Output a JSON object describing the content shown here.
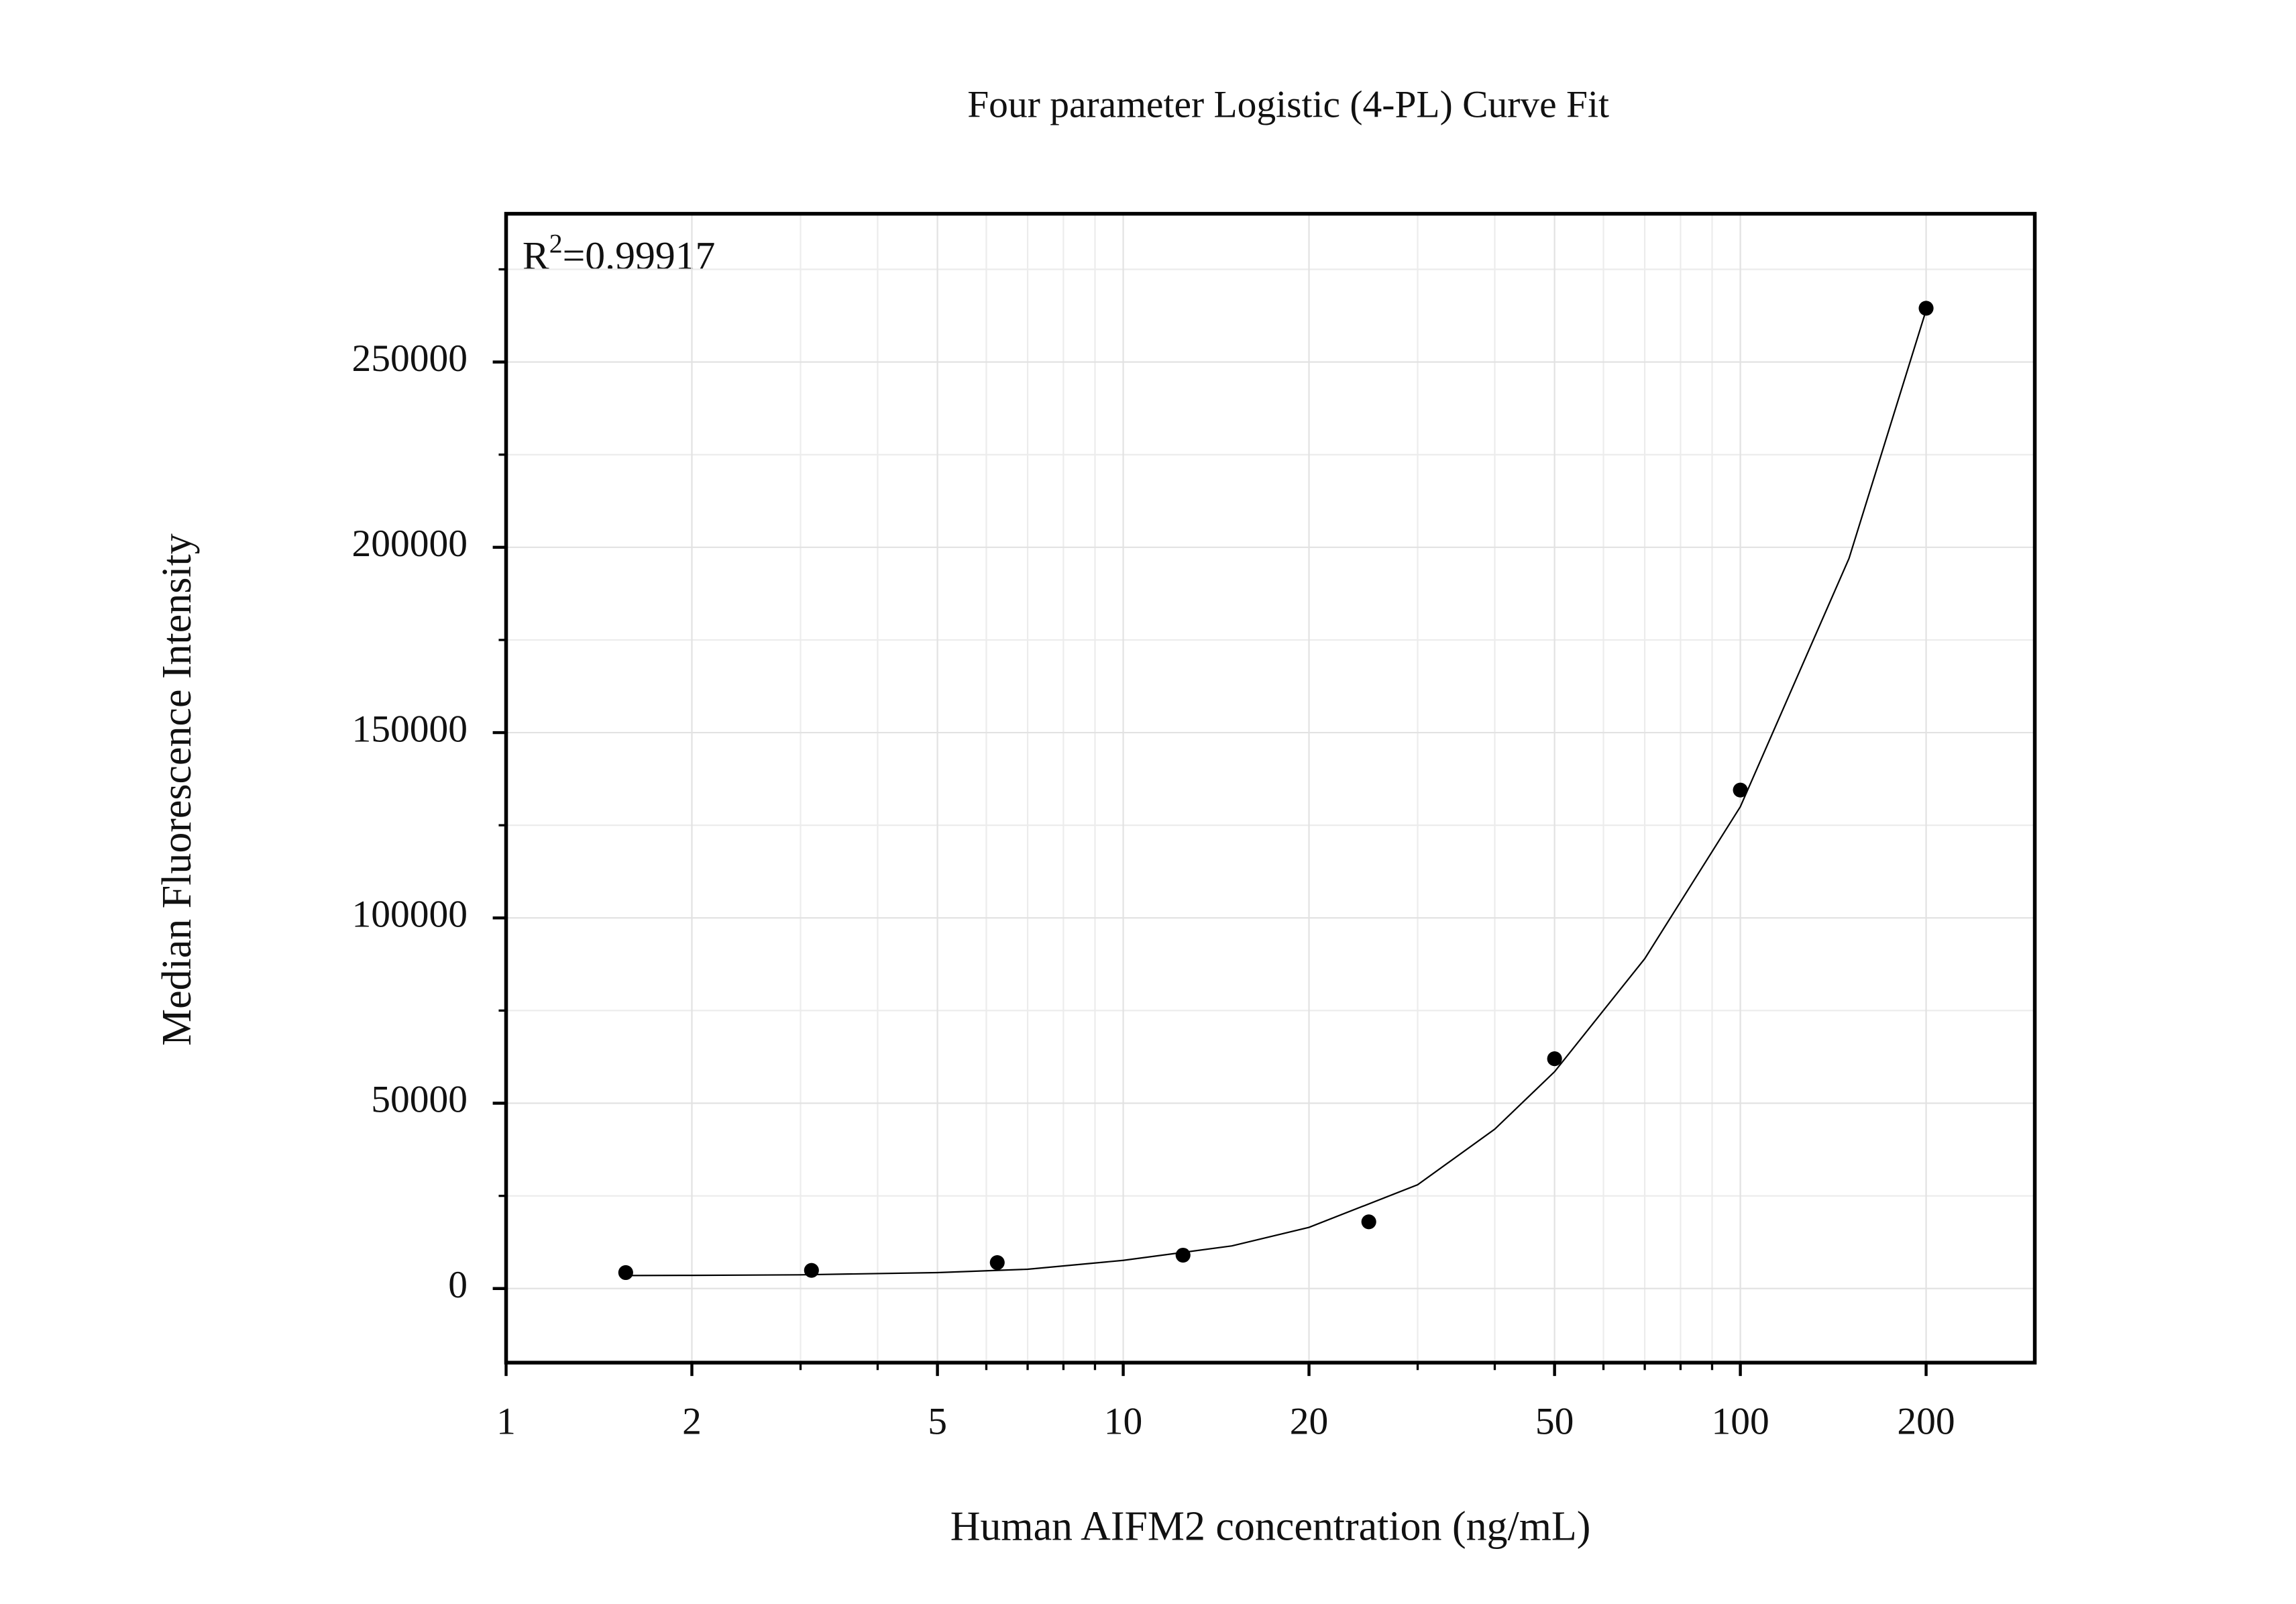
{
  "chart_data": {
    "type": "scatter",
    "title": "Four parameter Logistic (4-PL) Curve Fit",
    "x_label": "Human AIFM2 concentration (ng/mL)",
    "y_label": "Median Fluorescence Intensity",
    "annotation": {
      "base": "R",
      "superscript": "2",
      "rest": "=0.99917"
    },
    "x_scale": "log",
    "xlim": [
      1,
      300
    ],
    "ylim": [
      -20000,
      290000
    ],
    "xticks": [
      1,
      2,
      5,
      10,
      20,
      50,
      100,
      200
    ],
    "xminorticks": [
      3,
      4,
      6,
      7,
      8,
      9,
      30,
      40,
      60,
      70,
      80,
      90
    ],
    "yticks": [
      0,
      50000,
      100000,
      150000,
      200000,
      250000
    ],
    "yminorticks": [
      25000,
      75000,
      125000,
      175000,
      225000,
      275000
    ],
    "grid": true,
    "series": [
      {
        "kind": "points",
        "color": "#000000",
        "x": [
          1.5625,
          3.125,
          6.25,
          12.5,
          25,
          50,
          100,
          200
        ],
        "values": [
          4300,
          4900,
          7000,
          9000,
          18000,
          62000,
          134500,
          264500
        ]
      },
      {
        "kind": "curve",
        "color": "#000000",
        "x": [
          1.5625,
          2,
          3,
          5,
          7,
          10,
          15,
          20,
          30,
          40,
          50,
          70,
          100,
          150,
          200
        ],
        "values": [
          3500,
          3550,
          3700,
          4300,
          5200,
          7600,
          11500,
          16500,
          28000,
          43000,
          58500,
          89000,
          130000,
          197000,
          264000
        ]
      }
    ]
  }
}
